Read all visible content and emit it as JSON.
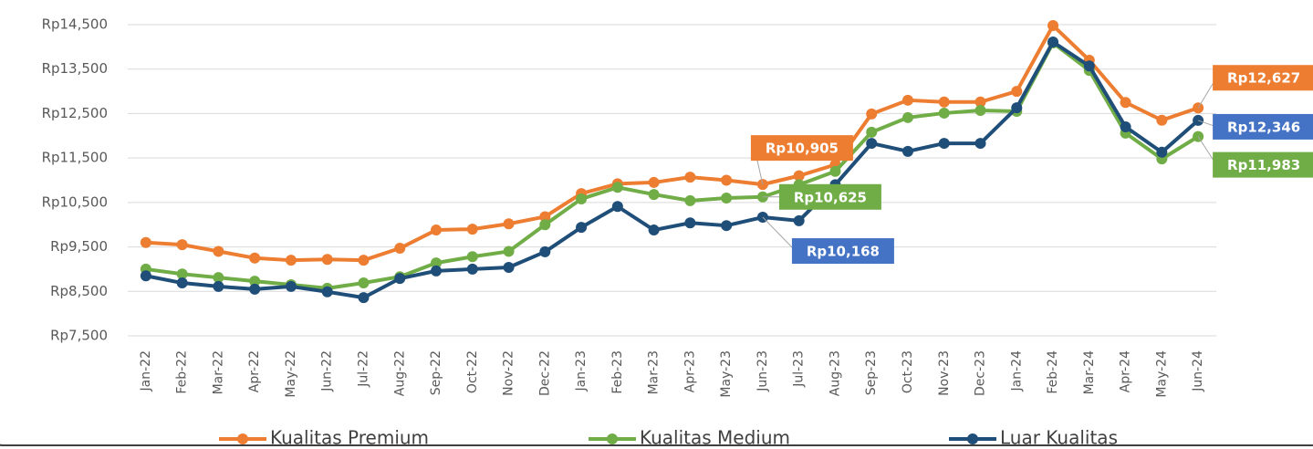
{
  "chart_data": {
    "type": "line",
    "categories": [
      "Jan-22",
      "Feb-22",
      "Mar-22",
      "Apr-22",
      "May-22",
      "Jun-22",
      "Jul-22",
      "Aug-22",
      "Sep-22",
      "Oct-22",
      "Nov-22",
      "Dec-22",
      "Jan-23",
      "Feb-23",
      "Mar-23",
      "Apr-23",
      "May-23",
      "Jun-23",
      "Jul-23",
      "Aug-23",
      "Sep-23",
      "Oct-23",
      "Nov-23",
      "Dec-23",
      "Jan-24",
      "Feb-24",
      "Mar-24",
      "Apr-24",
      "May-24",
      "Jun-24"
    ],
    "series": [
      {
        "name": "Kualitas Premium",
        "color": "#ed7d31",
        "label_color": "#ed7d31",
        "values": [
          9600,
          9550,
          9400,
          9250,
          9200,
          9220,
          9200,
          9470,
          9880,
          9900,
          10020,
          10180,
          10700,
          10920,
          10950,
          11070,
          11000,
          10905,
          11100,
          11350,
          12490,
          12800,
          12760,
          12760,
          13000,
          14480,
          13700,
          12750,
          12350,
          12627
        ],
        "value_labels": [
          null,
          null,
          null,
          null,
          null,
          null,
          null,
          null,
          null,
          null,
          null,
          null,
          null,
          null,
          null,
          null,
          null,
          "Rp10,905",
          null,
          null,
          null,
          null,
          null,
          null,
          null,
          null,
          null,
          null,
          null,
          "Rp12,627"
        ]
      },
      {
        "name": "Kualitas Medium",
        "color": "#70ad47",
        "label_color": "#70ad47",
        "values": [
          9000,
          8890,
          8810,
          8730,
          8650,
          8570,
          8690,
          8830,
          9140,
          9280,
          9400,
          10000,
          10580,
          10840,
          10680,
          10540,
          10600,
          10625,
          10900,
          11200,
          12080,
          12410,
          12510,
          12570,
          12550,
          14090,
          13470,
          12060,
          11480,
          11983
        ],
        "value_labels": [
          null,
          null,
          null,
          null,
          null,
          null,
          null,
          null,
          null,
          null,
          null,
          null,
          null,
          null,
          null,
          null,
          null,
          "Rp10,625",
          null,
          null,
          null,
          null,
          null,
          null,
          null,
          null,
          null,
          null,
          null,
          "Rp11,983"
        ]
      },
      {
        "name": "Luar Kualitas",
        "color": "#1f4e79",
        "label_color": "#4472c4",
        "values": [
          8850,
          8690,
          8610,
          8550,
          8610,
          8490,
          8360,
          8790,
          8960,
          9000,
          9040,
          9390,
          9940,
          10410,
          9880,
          10040,
          9980,
          10168,
          10090,
          10900,
          11830,
          11650,
          11830,
          11830,
          12630,
          14110,
          13570,
          12200,
          11630,
          12346
        ],
        "value_labels": [
          null,
          null,
          null,
          null,
          null,
          null,
          null,
          null,
          null,
          null,
          null,
          null,
          null,
          null,
          null,
          null,
          null,
          "Rp10,168",
          null,
          null,
          null,
          null,
          null,
          null,
          null,
          null,
          null,
          null,
          null,
          "Rp12,346"
        ]
      }
    ],
    "ylim": [
      7500,
      14500
    ],
    "yticks": [
      {
        "value": 7500,
        "label": "Rp7,500"
      },
      {
        "value": 8500,
        "label": "Rp8,500"
      },
      {
        "value": 9500,
        "label": "Rp9,500"
      },
      {
        "value": 10500,
        "label": "Rp10,500"
      },
      {
        "value": 11500,
        "label": "Rp11,500"
      },
      {
        "value": 12500,
        "label": "Rp12,500"
      },
      {
        "value": 13500,
        "label": "Rp13,500"
      },
      {
        "value": 14500,
        "label": "Rp14,500"
      }
    ],
    "grid": true,
    "legend": "bottom"
  }
}
